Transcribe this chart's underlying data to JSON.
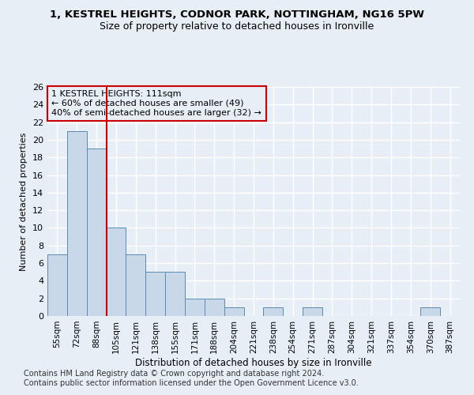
{
  "title_line1": "1, KESTREL HEIGHTS, CODNOR PARK, NOTTINGHAM, NG16 5PW",
  "title_line2": "Size of property relative to detached houses in Ironville",
  "xlabel": "Distribution of detached houses by size in Ironville",
  "ylabel": "Number of detached properties",
  "categories": [
    "55sqm",
    "72sqm",
    "88sqm",
    "105sqm",
    "121sqm",
    "138sqm",
    "155sqm",
    "171sqm",
    "188sqm",
    "204sqm",
    "221sqm",
    "238sqm",
    "254sqm",
    "271sqm",
    "287sqm",
    "304sqm",
    "321sqm",
    "337sqm",
    "354sqm",
    "370sqm",
    "387sqm"
  ],
  "values": [
    7,
    21,
    19,
    10,
    7,
    5,
    5,
    2,
    2,
    1,
    0,
    1,
    0,
    1,
    0,
    0,
    0,
    0,
    0,
    1,
    0
  ],
  "bar_color": "#c8d8e8",
  "bar_edge_color": "#5a8ab0",
  "property_line_x": 3,
  "annotation_lines": [
    "1 KESTREL HEIGHTS: 111sqm",
    "← 60% of detached houses are smaller (49)",
    "40% of semi-detached houses are larger (32) →"
  ],
  "vline_color": "#cc0000",
  "box_edge_color": "#cc0000",
  "ylim": [
    0,
    26
  ],
  "yticks": [
    0,
    2,
    4,
    6,
    8,
    10,
    12,
    14,
    16,
    18,
    20,
    22,
    24,
    26
  ],
  "footer_line1": "Contains HM Land Registry data © Crown copyright and database right 2024.",
  "footer_line2": "Contains public sector information licensed under the Open Government Licence v3.0.",
  "background_color": "#e8eef5",
  "grid_color": "#ffffff",
  "title_fontsize": 9.5,
  "subtitle_fontsize": 9,
  "footer_fontsize": 7,
  "annotation_fontsize": 8
}
